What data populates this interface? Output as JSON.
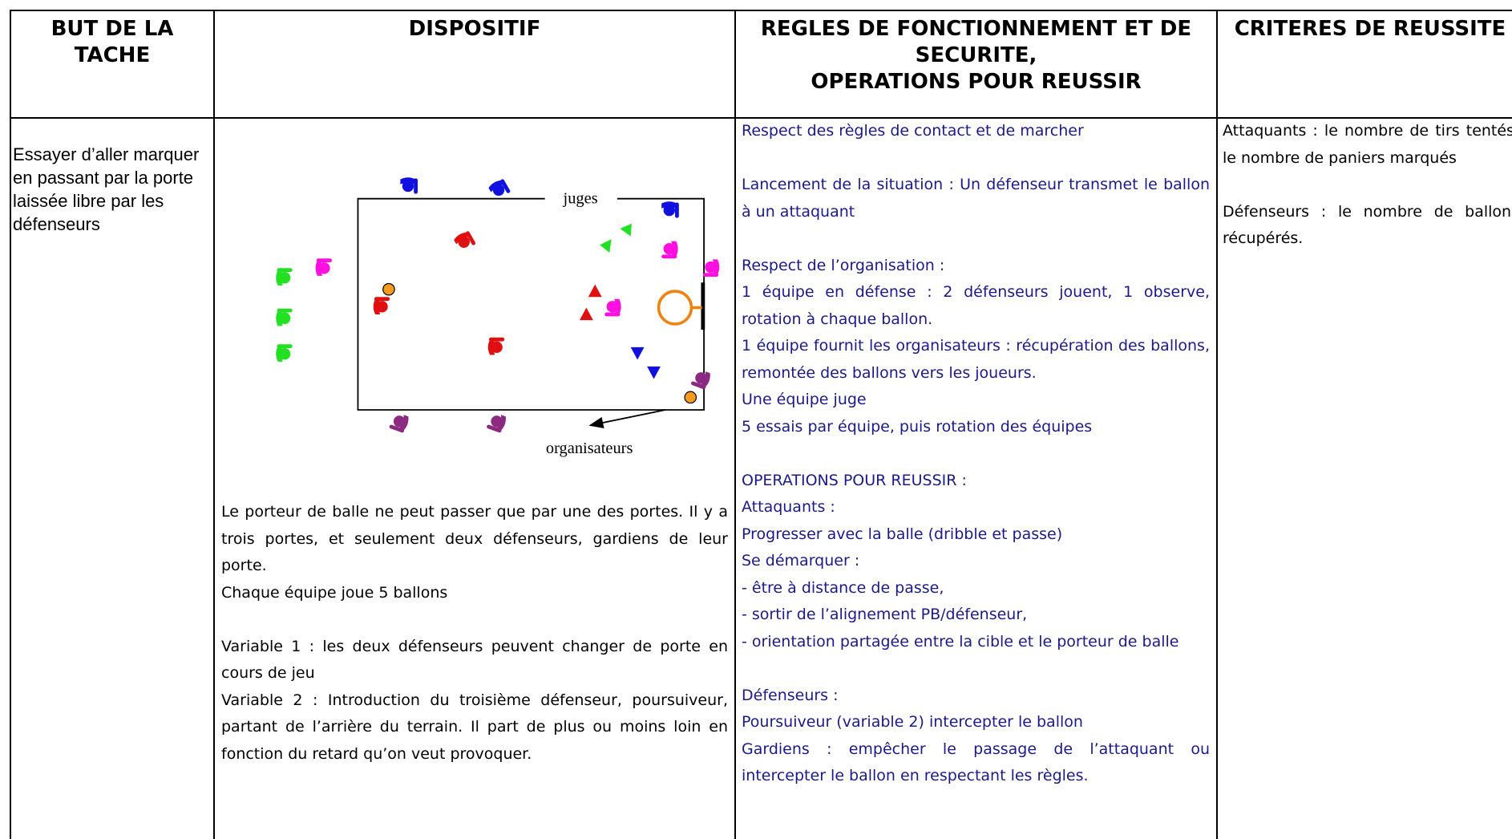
{
  "header": {
    "cells": [
      [
        "BUT DE LA TACHE"
      ],
      [
        "DISPOSITIF"
      ],
      [
        "REGLES DE FONCTIONNEMENT ET DE SECURITE,",
        "OPERATIONS POUR REUSSIR"
      ],
      [
        "CRITERES DE REUSSITE"
      ]
    ]
  },
  "row": {
    "goal": "Essayer d’aller marquer en passant par la porte laissée libre par les défenseurs",
    "setup": {
      "diagram": {
        "judges": "juges",
        "organizers": "organisateurs"
      },
      "sections": [
        [
          "Le porteur de balle ne peut passer que par une des portes. Il y a trois portes, et seulement deux défenseurs, gardiens de leur porte.",
          "Chaque équipe joue 5 ballons"
        ],
        [
          "Variable 1 : les deux défenseurs peuvent changer de porte en cours de jeu",
          "Variable 2 : Introduction du troisième défenseur, poursuiveur, partant de l’arrière du terrain. Il part de plus ou moins loin en fonction du retard qu’on veut provoquer."
        ]
      ]
    },
    "rules": [
      [
        "Respect des règles de contact et de marcher"
      ],
      [
        "Lancement de la situation : Un défenseur  transmet le ballon à un attaquant"
      ],
      [
        "Respect de l’organisation :",
        "1 équipe en défense : 2 défenseurs jouent, 1 observe, rotation à chaque ballon.",
        "1 équipe fournit les organisateurs : récupération des ballons, remontée des ballons vers les joueurs.",
        "Une équipe juge",
        "5 essais par équipe, puis rotation des équipes"
      ],
      [
        "OPERATIONS POUR REUSSIR :",
        "Attaquants :",
        "Progresser avec la balle (dribble et passe)",
        "Se démarquer :",
        "- être à distance de passe,",
        "- sortir de l’alignement PB/défenseur,",
        "- orientation partagée entre la cible et le porteur de balle"
      ],
      [
        "Défenseurs :",
        "Poursuiveur (variable 2) intercepter le ballon",
        "Gardiens : empêcher le passage de l’attaquant ou intercepter le ballon en respectant les règles."
      ]
    ],
    "criteria": [
      [
        "Attaquants : le nombre de tirs tentés, le nombre de paniers marqués"
      ],
      [
        "Défenseurs : le nombre de ballons récupérés."
      ]
    ]
  }
}
